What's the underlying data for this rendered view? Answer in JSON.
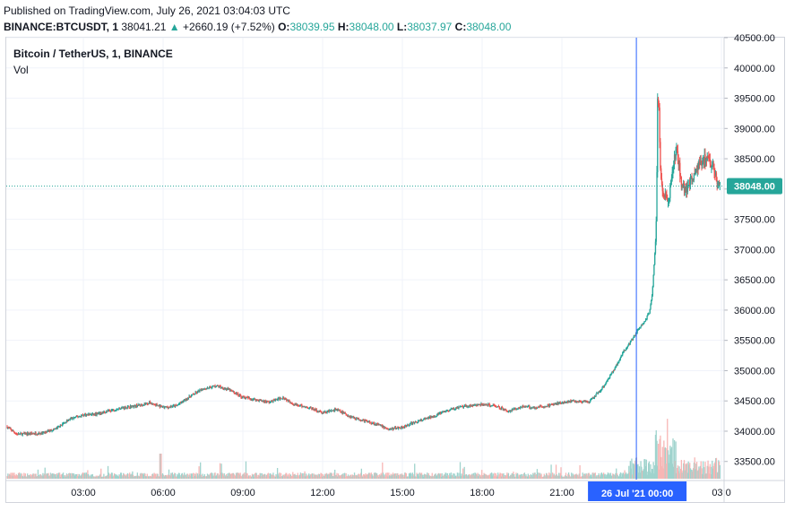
{
  "header": {
    "published": "Published on TradingView.com, July 26, 2021 03:04:03 UTC",
    "symbol": "BINANCE:BTCUSDT, 1",
    "last": "38041.21",
    "change_arrow": "▲",
    "change": "+2660.19 (+7.52%)",
    "o_label": "O:",
    "o_value": "38039.95",
    "h_label": "H:",
    "h_value": "38048.00",
    "l_label": "L:",
    "l_value": "38037.97",
    "c_label": "C:",
    "c_value": "38048.00"
  },
  "legend": {
    "title": "Bitcoin / TetherUS, 1, BINANCE",
    "vol": "Vol"
  },
  "colors": {
    "up": "#26a69a",
    "down": "#ef5350",
    "vol_up": "#9fd3cd",
    "vol_down": "#f7b6b5",
    "crosshair": "#2962ff",
    "badge": "#2962ff",
    "grid": "#f0f3fa",
    "axis_text": "#131722"
  },
  "chart_data": {
    "type": "candlestick",
    "title": "Bitcoin / TetherUS, 1, BINANCE",
    "ylim": [
      33200,
      40500
    ],
    "y_ticks": [
      "40500.00",
      "40000.00",
      "39500.00",
      "39000.00",
      "38500.00",
      "38000.00",
      "37500.00",
      "37000.00",
      "36500.00",
      "36000.00",
      "35500.00",
      "35000.00",
      "34500.00",
      "34000.00",
      "33500.00"
    ],
    "y_tick_values": [
      40500,
      40000,
      39500,
      39000,
      38500,
      38000,
      37500,
      37000,
      36500,
      36000,
      35500,
      35000,
      34500,
      34000,
      33500
    ],
    "x_ticks": [
      "03:00",
      "06:00",
      "09:00",
      "12:00",
      "15:00",
      "18:00",
      "21:00",
      "03:0"
    ],
    "x_tick_hours": [
      3,
      6,
      9,
      12,
      15,
      18,
      21,
      27
    ],
    "x_range_hours": [
      0.1,
      27.1
    ],
    "current_price": "38048.00",
    "current_price_value": 38048,
    "crosshair_label": "26 Jul '21   00:00",
    "crosshair_hour": 23.8,
    "price_path": [
      [
        0.1,
        34080
      ],
      [
        0.5,
        33950
      ],
      [
        1.0,
        33960
      ],
      [
        1.5,
        33970
      ],
      [
        2.0,
        34050
      ],
      [
        2.5,
        34200
      ],
      [
        3.0,
        34270
      ],
      [
        3.5,
        34280
      ],
      [
        4.0,
        34340
      ],
      [
        4.5,
        34390
      ],
      [
        5.0,
        34420
      ],
      [
        5.5,
        34470
      ],
      [
        6.0,
        34390
      ],
      [
        6.5,
        34420
      ],
      [
        7.0,
        34570
      ],
      [
        7.5,
        34700
      ],
      [
        8.0,
        34750
      ],
      [
        8.5,
        34680
      ],
      [
        9.0,
        34560
      ],
      [
        9.5,
        34520
      ],
      [
        10.0,
        34480
      ],
      [
        10.5,
        34560
      ],
      [
        11.0,
        34430
      ],
      [
        11.5,
        34390
      ],
      [
        12.0,
        34300
      ],
      [
        12.5,
        34360
      ],
      [
        13.0,
        34250
      ],
      [
        13.5,
        34180
      ],
      [
        14.0,
        34120
      ],
      [
        14.5,
        34030
      ],
      [
        15.0,
        34070
      ],
      [
        15.5,
        34150
      ],
      [
        16.0,
        34220
      ],
      [
        16.5,
        34310
      ],
      [
        17.0,
        34380
      ],
      [
        17.5,
        34420
      ],
      [
        18.0,
        34440
      ],
      [
        18.5,
        34420
      ],
      [
        19.0,
        34330
      ],
      [
        19.5,
        34410
      ],
      [
        20.0,
        34390
      ],
      [
        20.5,
        34420
      ],
      [
        21.0,
        34480
      ],
      [
        21.5,
        34500
      ],
      [
        22.0,
        34470
      ],
      [
        22.5,
        34700
      ],
      [
        23.0,
        35050
      ],
      [
        23.3,
        35300
      ],
      [
        23.6,
        35500
      ],
      [
        23.9,
        35700
      ],
      [
        24.1,
        35800
      ],
      [
        24.3,
        35980
      ],
      [
        24.4,
        36300
      ],
      [
        24.5,
        37000
      ],
      [
        24.55,
        37500
      ],
      [
        24.6,
        39500
      ],
      [
        24.65,
        39300
      ],
      [
        24.7,
        38300
      ],
      [
        24.8,
        38000
      ],
      [
        25.0,
        37800
      ],
      [
        25.1,
        38100
      ],
      [
        25.3,
        38700
      ],
      [
        25.5,
        38100
      ],
      [
        25.7,
        38000
      ],
      [
        25.9,
        38200
      ],
      [
        26.1,
        38350
      ],
      [
        26.3,
        38500
      ],
      [
        26.5,
        38450
      ],
      [
        26.7,
        38300
      ],
      [
        26.9,
        38050
      ]
    ],
    "volume_level": "low until the 23:00 breakout, then sharp spikes through 03:00"
  }
}
